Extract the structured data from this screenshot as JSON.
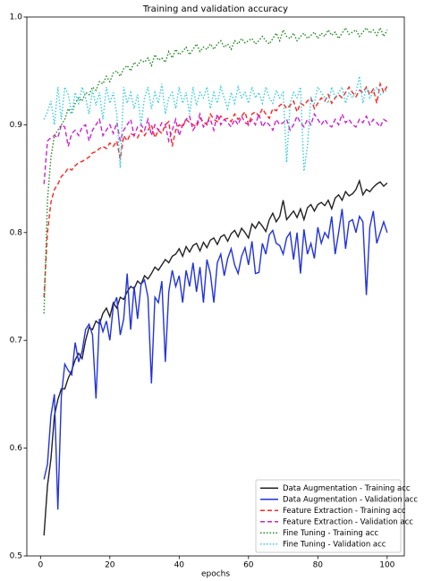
{
  "chart_data": {
    "type": "line",
    "title": "Training and validation accuracy",
    "x_label": "epochs",
    "x": [
      1,
      2,
      3,
      4,
      5,
      6,
      7,
      8,
      9,
      10,
      11,
      12,
      13,
      14,
      15,
      16,
      17,
      18,
      19,
      20,
      21,
      22,
      23,
      24,
      25,
      26,
      27,
      28,
      29,
      30,
      31,
      32,
      33,
      34,
      35,
      36,
      37,
      38,
      39,
      40,
      41,
      42,
      43,
      44,
      45,
      46,
      47,
      48,
      49,
      50,
      51,
      52,
      53,
      54,
      55,
      56,
      57,
      58,
      59,
      60,
      61,
      62,
      63,
      64,
      65,
      66,
      67,
      68,
      69,
      70,
      71,
      72,
      73,
      74,
      75,
      76,
      77,
      78,
      79,
      80,
      81,
      82,
      83,
      84,
      85,
      86,
      87,
      88,
      89,
      90,
      91,
      92,
      93,
      94,
      95,
      96,
      97,
      98,
      99,
      100
    ],
    "xlim": [
      -3.95,
      104.95
    ],
    "xticks": [
      0,
      20,
      40,
      60,
      80,
      100
    ],
    "ylim": [
      0.5,
      1.0
    ],
    "yticks": [
      0.5,
      0.6,
      0.7,
      0.8,
      0.9,
      {
        "value": 1,
        "label": "1.0"
      }
    ],
    "legend": "lower right",
    "series": [
      {
        "name": "Data Augmentation - Training acc",
        "color": "#222222",
        "linestyle": "solid",
        "values": [
          0.519,
          0.565,
          0.59,
          0.63,
          0.645,
          0.655,
          0.655,
          0.665,
          0.672,
          0.682,
          0.688,
          0.683,
          0.7,
          0.712,
          0.71,
          0.718,
          0.715,
          0.725,
          0.73,
          0.722,
          0.735,
          0.73,
          0.74,
          0.738,
          0.745,
          0.75,
          0.748,
          0.755,
          0.752,
          0.76,
          0.757,
          0.762,
          0.768,
          0.765,
          0.77,
          0.775,
          0.772,
          0.778,
          0.78,
          0.785,
          0.778,
          0.787,
          0.782,
          0.788,
          0.79,
          0.783,
          0.791,
          0.786,
          0.793,
          0.795,
          0.789,
          0.796,
          0.798,
          0.792,
          0.799,
          0.802,
          0.796,
          0.804,
          0.8,
          0.795,
          0.808,
          0.804,
          0.81,
          0.806,
          0.801,
          0.812,
          0.818,
          0.81,
          0.815,
          0.83,
          0.812,
          0.816,
          0.82,
          0.814,
          0.822,
          0.812,
          0.823,
          0.826,
          0.82,
          0.826,
          0.828,
          0.825,
          0.83,
          0.822,
          0.832,
          0.835,
          0.83,
          0.838,
          0.834,
          0.836,
          0.84,
          0.848,
          0.835,
          0.84,
          0.838,
          0.842,
          0.845,
          0.847,
          0.843,
          0.846
        ]
      },
      {
        "name": "Data Augmentation - Validation acc",
        "color": "#2233dd",
        "linestyle": "solid",
        "values": [
          0.571,
          0.585,
          0.63,
          0.65,
          0.543,
          0.648,
          0.678,
          0.672,
          0.668,
          0.698,
          0.68,
          0.69,
          0.71,
          0.715,
          0.705,
          0.646,
          0.72,
          0.708,
          0.718,
          0.7,
          0.732,
          0.74,
          0.705,
          0.72,
          0.762,
          0.71,
          0.75,
          0.72,
          0.752,
          0.756,
          0.74,
          0.66,
          0.74,
          0.735,
          0.755,
          0.68,
          0.745,
          0.765,
          0.75,
          0.76,
          0.735,
          0.765,
          0.75,
          0.772,
          0.745,
          0.768,
          0.735,
          0.775,
          0.762,
          0.735,
          0.772,
          0.78,
          0.76,
          0.776,
          0.785,
          0.77,
          0.762,
          0.778,
          0.786,
          0.77,
          0.792,
          0.762,
          0.763,
          0.79,
          0.78,
          0.798,
          0.802,
          0.79,
          0.788,
          0.78,
          0.795,
          0.8,
          0.775,
          0.8,
          0.762,
          0.803,
          0.78,
          0.79,
          0.776,
          0.805,
          0.79,
          0.8,
          0.795,
          0.815,
          0.78,
          0.8,
          0.822,
          0.785,
          0.81,
          0.812,
          0.8,
          0.815,
          0.81,
          0.742,
          0.805,
          0.82,
          0.79,
          0.8,
          0.81,
          0.8
        ]
      },
      {
        "name": "Feature Extraction - Training acc",
        "color": "#ff2222",
        "linestyle": "dashed",
        "values": [
          0.74,
          0.8,
          0.828,
          0.84,
          0.845,
          0.852,
          0.855,
          0.86,
          0.858,
          0.862,
          0.865,
          0.866,
          0.868,
          0.87,
          0.874,
          0.875,
          0.878,
          0.88,
          0.878,
          0.883,
          0.88,
          0.885,
          0.868,
          0.89,
          0.885,
          0.892,
          0.89,
          0.888,
          0.895,
          0.89,
          0.895,
          0.9,
          0.888,
          0.895,
          0.892,
          0.9,
          0.903,
          0.88,
          0.895,
          0.9,
          0.898,
          0.905,
          0.902,
          0.9,
          0.898,
          0.906,
          0.903,
          0.9,
          0.91,
          0.905,
          0.903,
          0.908,
          0.905,
          0.906,
          0.903,
          0.91,
          0.905,
          0.908,
          0.912,
          0.9,
          0.91,
          0.912,
          0.908,
          0.915,
          0.91,
          0.906,
          0.915,
          0.913,
          0.918,
          0.92,
          0.915,
          0.918,
          0.922,
          0.912,
          0.92,
          0.918,
          0.922,
          0.925,
          0.915,
          0.92,
          0.925,
          0.922,
          0.928,
          0.92,
          0.925,
          0.928,
          0.925,
          0.93,
          0.935,
          0.93,
          0.926,
          0.932,
          0.93,
          0.935,
          0.928,
          0.933,
          0.92,
          0.938,
          0.93,
          0.936
        ]
      },
      {
        "name": "Feature Extraction - Validation acc",
        "color": "#cc22cc",
        "linestyle": "dashed",
        "values": [
          0.845,
          0.885,
          0.888,
          0.89,
          0.888,
          0.9,
          0.898,
          0.88,
          0.892,
          0.895,
          0.89,
          0.898,
          0.9,
          0.885,
          0.895,
          0.9,
          0.905,
          0.89,
          0.895,
          0.9,
          0.892,
          0.902,
          0.885,
          0.895,
          0.9,
          0.905,
          0.89,
          0.898,
          0.9,
          0.895,
          0.905,
          0.89,
          0.9,
          0.895,
          0.902,
          0.9,
          0.885,
          0.895,
          0.905,
          0.89,
          0.9,
          0.905,
          0.908,
          0.895,
          0.9,
          0.91,
          0.898,
          0.902,
          0.905,
          0.895,
          0.91,
          0.9,
          0.905,
          0.902,
          0.898,
          0.905,
          0.9,
          0.908,
          0.902,
          0.9,
          0.905,
          0.9,
          0.91,
          0.898,
          0.903,
          0.9,
          0.895,
          0.905,
          0.9,
          0.902,
          0.905,
          0.895,
          0.9,
          0.908,
          0.902,
          0.898,
          0.905,
          0.9,
          0.91,
          0.905,
          0.9,
          0.905,
          0.9,
          0.898,
          0.905,
          0.9,
          0.91,
          0.902,
          0.905,
          0.9,
          0.898,
          0.905,
          0.902,
          0.908,
          0.9,
          0.905,
          0.902,
          0.898,
          0.905,
          0.903
        ]
      },
      {
        "name": "Fine Tuning - Training acc",
        "color": "#228822",
        "linestyle": "dotted",
        "values": [
          0.725,
          0.83,
          0.87,
          0.89,
          0.895,
          0.9,
          0.905,
          0.915,
          0.91,
          0.92,
          0.925,
          0.922,
          0.93,
          0.928,
          0.935,
          0.932,
          0.94,
          0.938,
          0.945,
          0.94,
          0.948,
          0.95,
          0.945,
          0.952,
          0.955,
          0.95,
          0.958,
          0.955,
          0.96,
          0.958,
          0.962,
          0.955,
          0.965,
          0.96,
          0.962,
          0.958,
          0.968,
          0.962,
          0.97,
          0.965,
          0.968,
          0.972,
          0.965,
          0.97,
          0.975,
          0.968,
          0.972,
          0.97,
          0.975,
          0.97,
          0.975,
          0.978,
          0.972,
          0.975,
          0.97,
          0.978,
          0.975,
          0.98,
          0.976,
          0.978,
          0.98,
          0.975,
          0.978,
          0.982,
          0.978,
          0.975,
          0.98,
          0.985,
          0.978,
          0.988,
          0.982,
          0.98,
          0.985,
          0.978,
          0.982,
          0.985,
          0.98,
          0.983,
          0.986,
          0.98,
          0.985,
          0.982,
          0.988,
          0.983,
          0.986,
          0.98,
          0.985,
          0.99,
          0.984,
          0.986,
          0.988,
          0.982,
          0.986,
          0.99,
          0.985,
          0.988,
          0.983,
          0.99,
          0.982,
          0.988
        ]
      },
      {
        "name": "Fine Tuning - Validation acc",
        "color": "#33ccdd",
        "linestyle": "dotted",
        "values": [
          0.905,
          0.912,
          0.922,
          0.9,
          0.935,
          0.905,
          0.935,
          0.928,
          0.91,
          0.93,
          0.92,
          0.935,
          0.925,
          0.91,
          0.932,
          0.918,
          0.93,
          0.905,
          0.935,
          0.92,
          0.93,
          0.91,
          0.86,
          0.935,
          0.92,
          0.93,
          0.915,
          0.928,
          0.9,
          0.925,
          0.935,
          0.915,
          0.93,
          0.92,
          0.938,
          0.91,
          0.925,
          0.93,
          0.915,
          0.935,
          0.92,
          0.93,
          0.91,
          0.935,
          0.918,
          0.93,
          0.925,
          0.935,
          0.915,
          0.93,
          0.92,
          0.935,
          0.925,
          0.915,
          0.93,
          0.92,
          0.935,
          0.925,
          0.93,
          0.92,
          0.935,
          0.925,
          0.93,
          0.92,
          0.935,
          0.925,
          0.92,
          0.932,
          0.925,
          0.93,
          0.865,
          0.92,
          0.93,
          0.925,
          0.935,
          0.857,
          0.88,
          0.925,
          0.92,
          0.935,
          0.93,
          0.925,
          0.92,
          0.935,
          0.925,
          0.93,
          0.935,
          0.92,
          0.93,
          0.925,
          0.93,
          0.945,
          0.92,
          0.935,
          0.925,
          0.93,
          0.935,
          0.928,
          0.93,
          0.932
        ]
      }
    ]
  }
}
